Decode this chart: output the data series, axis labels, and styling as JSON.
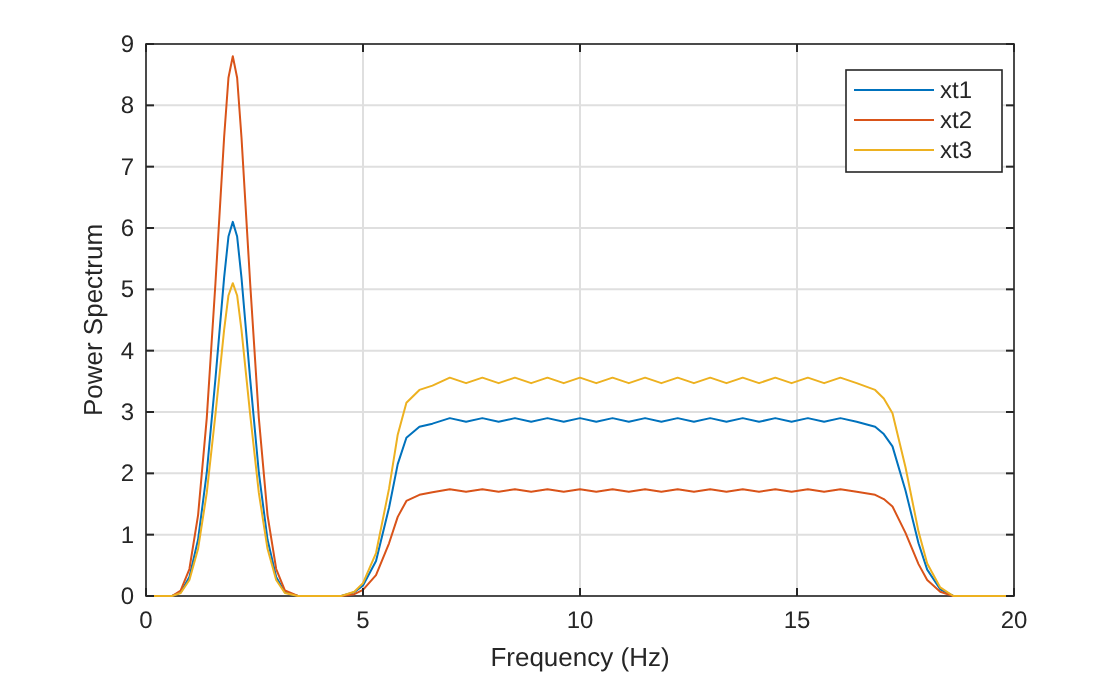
{
  "chart_data": {
    "type": "line",
    "xlabel": "Frequency (Hz)",
    "ylabel": "Power Spectrum",
    "x": [
      0,
      0.6,
      0.8,
      1.0,
      1.2,
      1.4,
      1.6,
      1.8,
      1.9,
      2.0,
      2.1,
      2.2,
      2.4,
      2.6,
      2.8,
      3.0,
      3.2,
      3.5,
      4.0,
      4.3,
      4.5,
      4.8,
      5.0,
      5.3,
      5.6,
      5.8,
      6.0,
      6.3,
      6.6,
      7,
      7.375,
      7.75,
      8.125,
      8.5,
      8.875,
      9.25,
      9.625,
      10,
      10.375,
      10.75,
      11.125,
      11.5,
      11.875,
      12.25,
      12.625,
      13,
      13.375,
      13.75,
      14.125,
      14.5,
      14.875,
      15.25,
      15.625,
      16,
      16.375,
      16.8,
      17.0,
      17.2,
      17.5,
      17.8,
      18.0,
      18.3,
      18.6,
      19,
      20
    ],
    "series": [
      {
        "name": "xt1",
        "color": "#0072bd",
        "values": [
          0,
          0,
          0.06,
          0.31,
          0.92,
          2.01,
          3.54,
          5.19,
          5.86,
          6.1,
          5.86,
          5.19,
          3.54,
          2.01,
          0.92,
          0.31,
          0.06,
          0,
          0,
          0,
          0,
          0.06,
          0.17,
          0.57,
          1.44,
          2.15,
          2.58,
          2.76,
          2.81,
          2.9,
          2.84,
          2.9,
          2.84,
          2.9,
          2.84,
          2.9,
          2.84,
          2.9,
          2.84,
          2.9,
          2.84,
          2.9,
          2.84,
          2.9,
          2.84,
          2.9,
          2.84,
          2.9,
          2.84,
          2.9,
          2.84,
          2.9,
          2.84,
          2.9,
          2.84,
          2.76,
          2.64,
          2.44,
          1.72,
          0.86,
          0.43,
          0.11,
          0,
          0,
          0
        ]
      },
      {
        "name": "xt2",
        "color": "#d95319",
        "values": [
          0,
          0,
          0.09,
          0.44,
          1.32,
          2.9,
          5.1,
          7.48,
          8.45,
          8.8,
          8.45,
          7.48,
          5.1,
          2.9,
          1.32,
          0.44,
          0.09,
          0,
          0,
          0,
          0,
          0.03,
          0.1,
          0.34,
          0.86,
          1.29,
          1.55,
          1.65,
          1.69,
          1.74,
          1.7,
          1.74,
          1.7,
          1.74,
          1.7,
          1.74,
          1.7,
          1.74,
          1.7,
          1.74,
          1.7,
          1.74,
          1.7,
          1.74,
          1.7,
          1.74,
          1.7,
          1.74,
          1.7,
          1.74,
          1.7,
          1.74,
          1.7,
          1.74,
          1.7,
          1.65,
          1.58,
          1.46,
          1.03,
          0.52,
          0.26,
          0.07,
          0,
          0,
          0
        ]
      },
      {
        "name": "xt3",
        "color": "#edb120",
        "values": [
          0,
          0,
          0.05,
          0.26,
          0.77,
          1.68,
          2.96,
          4.34,
          4.9,
          5.1,
          4.9,
          4.34,
          2.96,
          1.68,
          0.77,
          0.26,
          0.05,
          0,
          0,
          0,
          0,
          0.07,
          0.21,
          0.7,
          1.75,
          2.63,
          3.15,
          3.36,
          3.43,
          3.56,
          3.47,
          3.56,
          3.47,
          3.56,
          3.47,
          3.56,
          3.47,
          3.56,
          3.47,
          3.56,
          3.47,
          3.56,
          3.47,
          3.56,
          3.47,
          3.56,
          3.47,
          3.56,
          3.47,
          3.56,
          3.47,
          3.56,
          3.47,
          3.56,
          3.47,
          3.36,
          3.22,
          2.98,
          2.1,
          1.05,
          0.53,
          0.14,
          0,
          0,
          0
        ]
      }
    ],
    "xlim": [
      0,
      20
    ],
    "xticks": [
      0,
      5,
      10,
      15,
      20
    ],
    "ylim": [
      0,
      9
    ],
    "yticks": [
      0,
      1,
      2,
      3,
      4,
      5,
      6,
      7,
      8,
      9
    ],
    "grid": true,
    "legend": "top right",
    "marker": "none",
    "line_style": "solid"
  }
}
